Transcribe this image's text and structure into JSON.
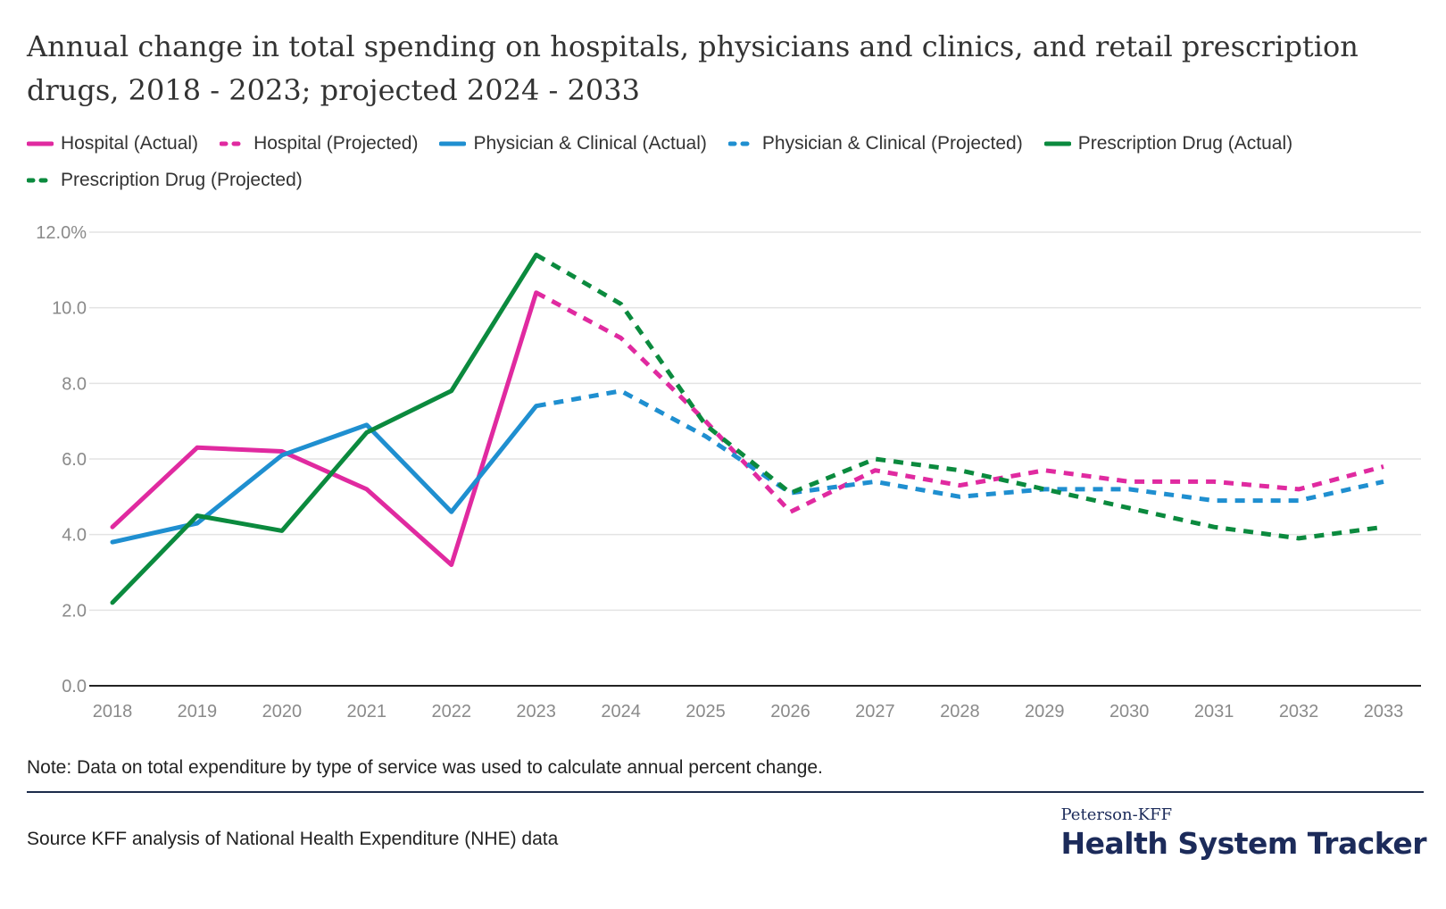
{
  "title": "Annual change in total spending on hospitals, physicians and clinics, and retail prescription drugs, 2018 - 2023; projected 2024 - 2033",
  "note": "Note: Data on total expenditure by type of service was used to calculate annual percent change.",
  "source": "Source KFF analysis of National Health Expenditure (NHE) data",
  "brand": {
    "top": "Peterson-KFF",
    "main": "Health System Tracker"
  },
  "legend": [
    {
      "label": "Hospital (Actual)",
      "color": "#e02aa0",
      "dashed": false
    },
    {
      "label": "Hospital (Projected)",
      "color": "#e02aa0",
      "dashed": true
    },
    {
      "label": "Physician & Clinical (Actual)",
      "color": "#1f8fd0",
      "dashed": false
    },
    {
      "label": "Physician & Clinical (Projected)",
      "color": "#1f8fd0",
      "dashed": true
    },
    {
      "label": "Prescription Drug (Actual)",
      "color": "#0b8a3e",
      "dashed": false
    },
    {
      "label": "Prescription Drug (Projected)",
      "color": "#0b8a3e",
      "dashed": true
    }
  ],
  "chart_data": {
    "type": "line",
    "x": [
      2018,
      2019,
      2020,
      2021,
      2022,
      2023,
      2024,
      2025,
      2026,
      2027,
      2028,
      2029,
      2030,
      2031,
      2032,
      2033
    ],
    "ylim": [
      0,
      12
    ],
    "yticks": [
      0,
      2,
      4,
      6,
      8,
      10,
      12
    ],
    "ytick_labels": [
      "0.0",
      "2.0",
      "4.0",
      "6.0",
      "8.0",
      "10.0",
      "12.0%"
    ],
    "grid": true,
    "legend_position": "top",
    "series": [
      {
        "name": "Hospital (Actual)",
        "color": "#e02aa0",
        "dashed": false,
        "x": [
          2018,
          2019,
          2020,
          2021,
          2022,
          2023
        ],
        "values": [
          4.2,
          6.3,
          6.2,
          5.2,
          3.2,
          10.4
        ]
      },
      {
        "name": "Hospital (Projected)",
        "color": "#e02aa0",
        "dashed": true,
        "x": [
          2023,
          2024,
          2025,
          2026,
          2027,
          2028,
          2029,
          2030,
          2031,
          2032,
          2033
        ],
        "values": [
          10.4,
          9.2,
          7.0,
          4.6,
          5.7,
          5.3,
          5.7,
          5.4,
          5.4,
          5.2,
          5.8
        ]
      },
      {
        "name": "Physician & Clinical (Actual)",
        "color": "#1f8fd0",
        "dashed": false,
        "x": [
          2018,
          2019,
          2020,
          2021,
          2022,
          2023
        ],
        "values": [
          3.8,
          4.3,
          6.1,
          6.9,
          4.6,
          7.4
        ]
      },
      {
        "name": "Physician & Clinical (Projected)",
        "color": "#1f8fd0",
        "dashed": true,
        "x": [
          2023,
          2024,
          2025,
          2026,
          2027,
          2028,
          2029,
          2030,
          2031,
          2032,
          2033
        ],
        "values": [
          7.4,
          7.8,
          6.6,
          5.1,
          5.4,
          5.0,
          5.2,
          5.2,
          4.9,
          4.9,
          5.4
        ]
      },
      {
        "name": "Prescription Drug (Actual)",
        "color": "#0b8a3e",
        "dashed": false,
        "x": [
          2018,
          2019,
          2020,
          2021,
          2022,
          2023
        ],
        "values": [
          2.2,
          4.5,
          4.1,
          6.7,
          7.8,
          11.4
        ]
      },
      {
        "name": "Prescription Drug (Projected)",
        "color": "#0b8a3e",
        "dashed": true,
        "x": [
          2023,
          2024,
          2025,
          2026,
          2027,
          2028,
          2029,
          2030,
          2031,
          2032,
          2033
        ],
        "values": [
          11.4,
          10.1,
          6.9,
          5.1,
          6.0,
          5.7,
          5.2,
          4.7,
          4.2,
          3.9,
          4.2
        ]
      }
    ]
  }
}
